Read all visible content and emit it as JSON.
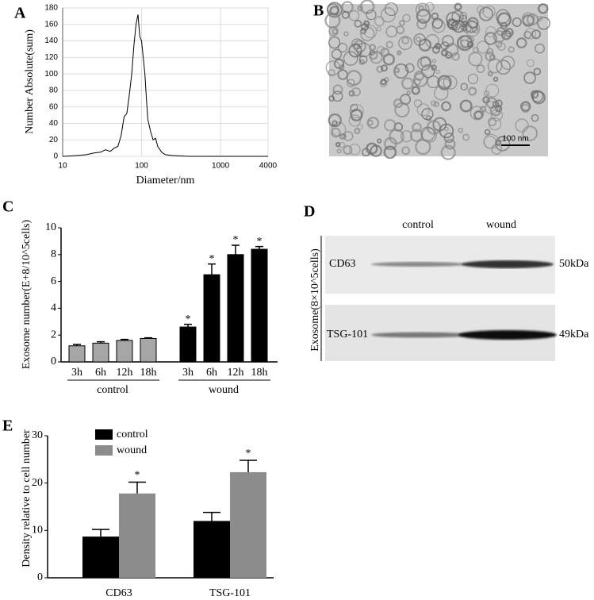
{
  "chart_data": [
    {
      "type": "line",
      "panel_label": "A",
      "x_label": "Diameter/nm",
      "y_label": "Number Absolute(sum)",
      "xscale": "log",
      "xlim": [
        10,
        4000
      ],
      "xticks": [
        10,
        100,
        1000,
        4000
      ],
      "ylim": [
        0,
        180
      ],
      "yticks": [
        0,
        20,
        40,
        60,
        80,
        100,
        120,
        140,
        160,
        180
      ],
      "grid": true,
      "color": "#000000",
      "x": [
        10,
        15,
        20,
        25,
        30,
        35,
        40,
        45,
        50,
        55,
        60,
        65,
        70,
        75,
        80,
        85,
        90,
        95,
        100,
        105,
        110,
        115,
        120,
        130,
        140,
        150,
        160,
        180,
        200,
        250,
        400,
        1000,
        4000
      ],
      "values": [
        0,
        1,
        2,
        4,
        5,
        8,
        6,
        10,
        12,
        25,
        48,
        52,
        75,
        100,
        135,
        160,
        172,
        145,
        140,
        120,
        100,
        70,
        45,
        30,
        20,
        22,
        12,
        5,
        2,
        1,
        0,
        0,
        0
      ]
    },
    {
      "type": "grouped-bar",
      "panel_label": "C",
      "y_label": "Exosome number(E+8/10^5cells)",
      "ylim": [
        0,
        10
      ],
      "yticks": [
        0,
        2,
        4,
        6,
        8,
        10
      ],
      "groups": [
        {
          "name": "control",
          "color": "#a6a6a6",
          "categories": [
            "3h",
            "6h",
            "12h",
            "18h"
          ],
          "values": [
            1.2,
            1.4,
            1.6,
            1.75
          ],
          "errors": [
            0.1,
            0.1,
            0.08,
            0.05
          ]
        },
        {
          "name": "wound",
          "color": "#000000",
          "categories": [
            "3h",
            "6h",
            "12h",
            "18h"
          ],
          "values": [
            2.6,
            6.5,
            8.0,
            8.4
          ],
          "errors": [
            0.2,
            0.8,
            0.7,
            0.2
          ],
          "marks": [
            "*",
            "*",
            "*",
            "*"
          ]
        }
      ]
    },
    {
      "type": "bar",
      "panel_label": "E",
      "y_label": "Density relative to cell number",
      "ylim": [
        0,
        30
      ],
      "yticks": [
        0,
        10,
        20,
        30
      ],
      "categories": [
        "CD63",
        "TSG-101"
      ],
      "series": [
        {
          "name": "control",
          "color": "#000000",
          "values": [
            8.7,
            12
          ],
          "errors": [
            1.5,
            1.8
          ]
        },
        {
          "name": "wound",
          "color": "#8c8c8c",
          "values": [
            17.8,
            22.3
          ],
          "errors": [
            2.4,
            2.5
          ],
          "marks": [
            "*",
            "*"
          ]
        }
      ]
    }
  ],
  "image_panels": {
    "B": {
      "panel_label": "B",
      "scale_bar": "100 nm"
    },
    "D": {
      "panel_label": "D",
      "lanes": [
        "control",
        "wound"
      ],
      "side_label": "Exosome(8×10^5cells)",
      "blots": [
        {
          "protein": "CD63",
          "size": "50kDa"
        },
        {
          "protein": "TSG-101",
          "size": "49kDa"
        }
      ]
    }
  }
}
